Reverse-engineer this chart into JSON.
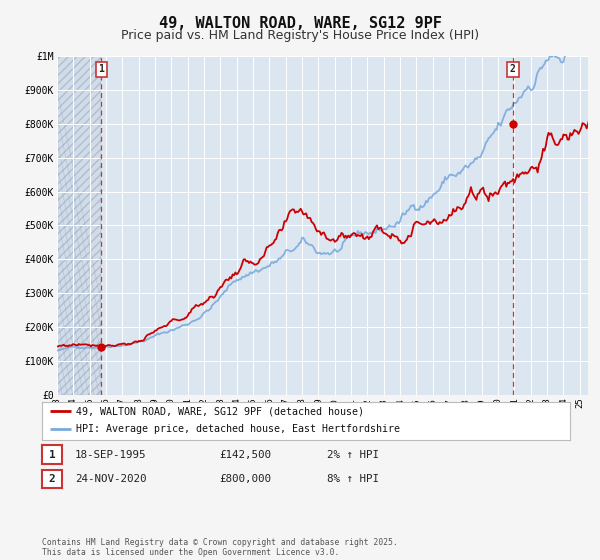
{
  "title": "49, WALTON ROAD, WARE, SG12 9PF",
  "subtitle": "Price paid vs. HM Land Registry's House Price Index (HPI)",
  "title_fontsize": 11,
  "subtitle_fontsize": 9,
  "bg_color": "#dce6f1",
  "fig_bg_color": "#f5f5f5",
  "grid_color": "#ffffff",
  "ylim": [
    0,
    1000000
  ],
  "yticks": [
    0,
    100000,
    200000,
    300000,
    400000,
    500000,
    600000,
    700000,
    800000,
    900000,
    1000000
  ],
  "ytick_labels": [
    "£0",
    "£100K",
    "£200K",
    "£300K",
    "£400K",
    "£500K",
    "£600K",
    "£700K",
    "£800K",
    "£900K",
    "£1M"
  ],
  "year_start": 1993,
  "year_end": 2025,
  "xlim_end": 2025.5,
  "sale1_date": 1995.72,
  "sale1_price": 142500,
  "sale2_date": 2020.9,
  "sale2_price": 800000,
  "red_line_color": "#cc0000",
  "blue_line_color": "#7aaadd",
  "marker_color": "#cc0000",
  "dashed_line_color": "#cc3333",
  "legend_label_red": "49, WALTON ROAD, WARE, SG12 9PF (detached house)",
  "legend_label_blue": "HPI: Average price, detached house, East Hertfordshire",
  "table_row1": [
    "1",
    "18-SEP-1995",
    "£142,500",
    "2% ↑ HPI"
  ],
  "table_row2": [
    "2",
    "24-NOV-2020",
    "£800,000",
    "8% ↑ HPI"
  ],
  "footer": "Contains HM Land Registry data © Crown copyright and database right 2025.\nThis data is licensed under the Open Government Licence v3.0."
}
